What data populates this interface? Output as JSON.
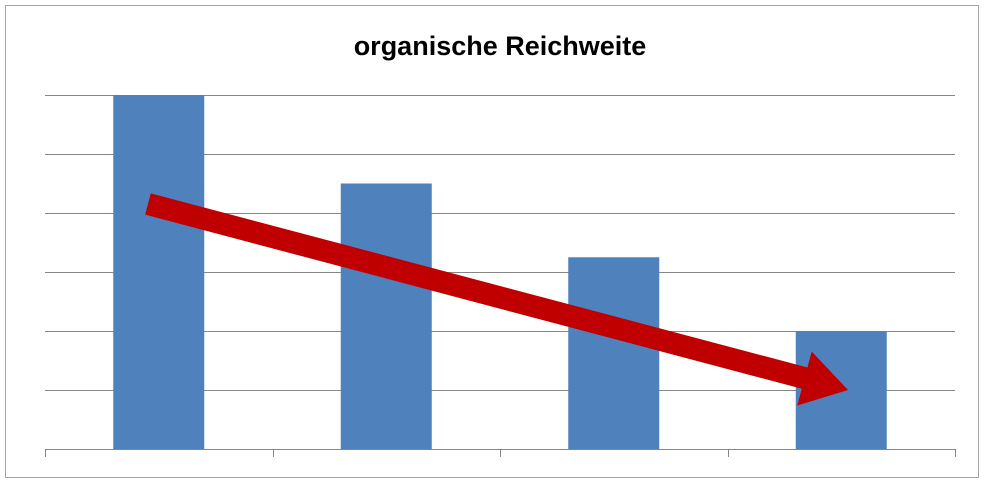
{
  "chart_data": {
    "type": "bar",
    "title": "organische Reichweite",
    "categories": [
      null,
      null,
      null,
      null
    ],
    "values": [
      6,
      4.5,
      3.25,
      2
    ],
    "color": "#4f81bd",
    "ylim": [
      0,
      6
    ],
    "yticks": [
      0,
      1,
      2,
      3,
      4,
      5,
      6
    ],
    "grid": true
  }
}
